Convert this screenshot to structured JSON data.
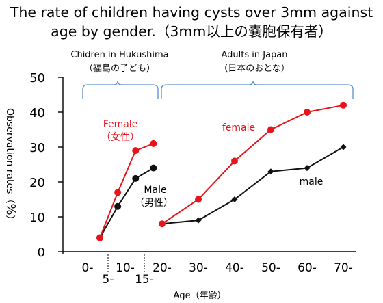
{
  "chart_data": {
    "type": "line",
    "title_line1": "The rate of  children having cysts over 3mm against",
    "title_line2": "age by gender.（3mm以上の嚢胞保有者）",
    "ylabel_parts": [
      "Observation rates",
      "（",
      "%",
      "）"
    ],
    "xlabel": "Age（年齢）",
    "ylim": [
      0,
      50
    ],
    "yticks": [
      "0",
      "10",
      "20",
      "30",
      "40",
      "50"
    ],
    "xticks_upper": [
      "0-",
      "10-",
      "20-",
      "30-",
      "40-",
      "50-",
      "60-",
      "70-"
    ],
    "xticks_lower": [
      "5-",
      "15-"
    ],
    "groups": [
      {
        "name": "Chidren in Hukushima",
        "name_jp": "（福島の子ども）"
      },
      {
        "name": "Adults in Japan",
        "name_jp": "（日本のおとな）"
      }
    ],
    "series": [
      {
        "name": "Female",
        "name_jp": "（女性）",
        "color": "#e8141c",
        "group": "children",
        "points": [
          {
            "x": "2.5",
            "y": 4
          },
          {
            "x": "7.5",
            "y": 17
          },
          {
            "x": "12.5",
            "y": 29
          },
          {
            "x": "17.5",
            "y": 31
          }
        ]
      },
      {
        "name": "Male",
        "name_jp": "（男性）",
        "color": "#111111",
        "group": "children",
        "points": [
          {
            "x": "2.5",
            "y": 4
          },
          {
            "x": "7.5",
            "y": 13
          },
          {
            "x": "12.5",
            "y": 21
          },
          {
            "x": "17.5",
            "y": 24
          }
        ]
      },
      {
        "name": "female",
        "color": "#e8141c",
        "group": "adults",
        "points": [
          {
            "x": "20-",
            "y": 8
          },
          {
            "x": "30-",
            "y": 15
          },
          {
            "x": "40-",
            "y": 26
          },
          {
            "x": "50-",
            "y": 35
          },
          {
            "x": "60-",
            "y": 40
          },
          {
            "x": "70-",
            "y": 42
          }
        ]
      },
      {
        "name": "male",
        "color": "#111111",
        "group": "adults",
        "points": [
          {
            "x": "20-",
            "y": 8
          },
          {
            "x": "30-",
            "y": 9
          },
          {
            "x": "40-",
            "y": 15
          },
          {
            "x": "50-",
            "y": 23
          },
          {
            "x": "60-",
            "y": 24
          },
          {
            "x": "70-",
            "y": 30
          }
        ]
      }
    ],
    "colors": {
      "female": "#e8141c",
      "male": "#111111",
      "brace": "#5b8fd1"
    }
  }
}
